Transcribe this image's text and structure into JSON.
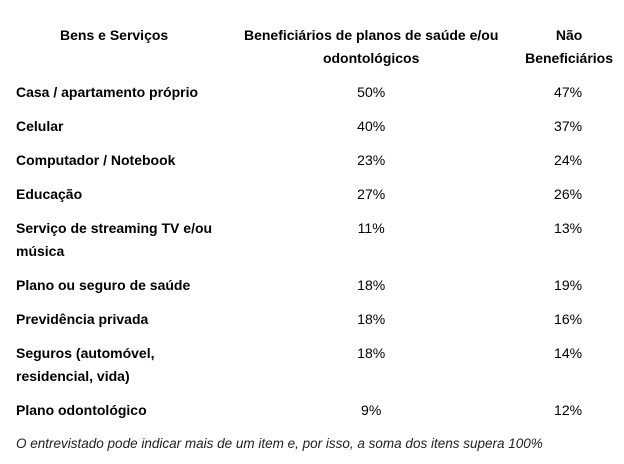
{
  "table": {
    "headers": [
      "Bens e Serviços",
      "Beneficiários de planos de saúde e/ou odontológicos",
      "Não Beneficiários"
    ],
    "rows": [
      {
        "item": "Casa / apartamento próprio",
        "beneficiarios": "50%",
        "nao_beneficiarios": "47%"
      },
      {
        "item": "Celular",
        "beneficiarios": "40%",
        "nao_beneficiarios": "37%"
      },
      {
        "item": "Computador / Notebook",
        "beneficiarios": "23%",
        "nao_beneficiarios": "24%"
      },
      {
        "item": "Educação",
        "beneficiarios": "27%",
        "nao_beneficiarios": "26%"
      },
      {
        "item": "Serviço de streaming TV e/ou música",
        "beneficiarios": "11%",
        "nao_beneficiarios": "13%"
      },
      {
        "item": "Plano ou seguro de saúde",
        "beneficiarios": "18%",
        "nao_beneficiarios": "19%"
      },
      {
        "item": "Previdência privada",
        "beneficiarios": "18%",
        "nao_beneficiarios": "16%"
      },
      {
        "item": "Seguros (automóvel, residencial, vida)",
        "beneficiarios": "18%",
        "nao_beneficiarios": "14%"
      },
      {
        "item": "Plano odontológico",
        "beneficiarios": "9%",
        "nao_beneficiarios": "12%"
      }
    ]
  },
  "footnote": "O entrevistado pode indicar mais de um item e, por isso, a soma dos itens supera 100%"
}
